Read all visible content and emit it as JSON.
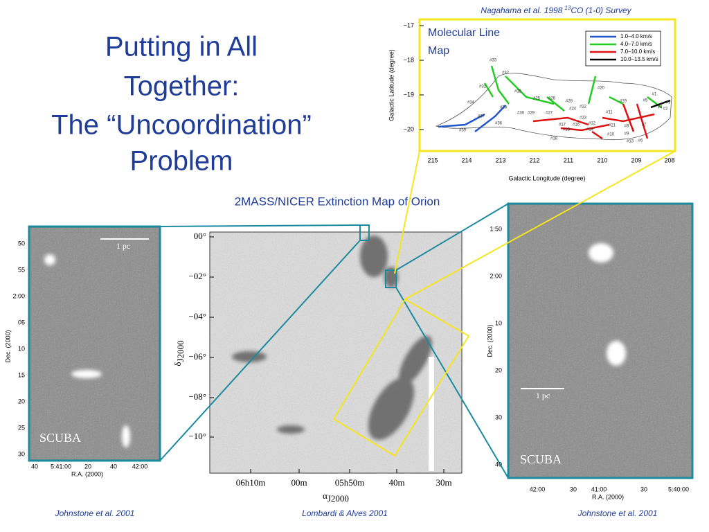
{
  "title": {
    "lines": [
      "Putting in All",
      "Together:",
      "The “Uncoordination”",
      "Problem"
    ]
  },
  "survey": {
    "caption": {
      "authors": "Nagahama et al. 1998",
      "isotope": "13",
      "rest": "CO (1-0) Survey"
    },
    "label": [
      "Molecular Line",
      "Map"
    ],
    "legend": [
      "1.0–4.0 km/s",
      "4.0–7.0 km/s",
      "7.0–10.0 km/s",
      "10.0–13.5 km/s"
    ],
    "y_axis": {
      "label": "Galactic Latitude (degree)",
      "ticks": [
        "−17",
        "−18",
        "−19",
        "−20"
      ]
    },
    "x_axis": {
      "label": "Galactic Longitude (degree)",
      "ticks": [
        "215",
        "214",
        "213",
        "212",
        "211",
        "210",
        "209",
        "208"
      ]
    },
    "filament_labels": [
      "#33",
      "#32",
      "#31",
      "#35",
      "#34",
      "#38",
      "#37",
      "#39",
      "#36",
      "#25",
      "#26",
      "#28",
      "#30",
      "#29",
      "#27",
      "#24",
      "#22",
      "#23",
      "#20",
      "#19",
      "#11",
      "#12",
      "#17",
      "#16",
      "#15",
      "#18",
      "#14",
      "#10",
      "#21",
      "#9",
      "#8",
      "#7",
      "#6",
      "#5",
      "#4",
      "#3",
      "#2",
      "#1",
      "#13"
    ]
  },
  "extinction_map": {
    "title": "2MASS/NICER Extinction Map of Orion",
    "y_axis": {
      "symbol": "δ",
      "subscript": "J2000",
      "ticks": [
        "00°",
        "−02°",
        "−04°",
        "−06°",
        "−08°",
        "−10°"
      ]
    },
    "x_axis": {
      "symbol": "α",
      "subscript": "J2000",
      "ticks": [
        "06h10m",
        "00m",
        "05h50m",
        "40m",
        "30m"
      ]
    }
  },
  "left_panel": {
    "y_axis": {
      "label": "Dec. (2000)",
      "ticks": [
        "50",
        "55",
        "2:00",
        "05",
        "10",
        "15",
        "20",
        "25",
        "30"
      ]
    },
    "x_axis": {
      "label": "R.A. (2000)",
      "ticks": [
        "40",
        "5:41:00",
        "20",
        "40",
        "42:00"
      ]
    },
    "scale": "1 pc",
    "instrument": "SCUBA"
  },
  "right_panel": {
    "y_axis": {
      "label": "Dec. (2000)",
      "ticks": [
        "1:50",
        "2:00",
        "10",
        "20",
        "30",
        "40"
      ]
    },
    "x_axis": {
      "label": "R.A. (2000)",
      "ticks": [
        "42:00",
        "30",
        "41:00",
        "30",
        "5:40:00"
      ]
    },
    "scale": "1 pc",
    "instrument": "SCUBA"
  },
  "credits": [
    "Johnstone et al. 2001",
    "Lombardi & Alves 2001",
    "Johnstone et al. 2001"
  ]
}
